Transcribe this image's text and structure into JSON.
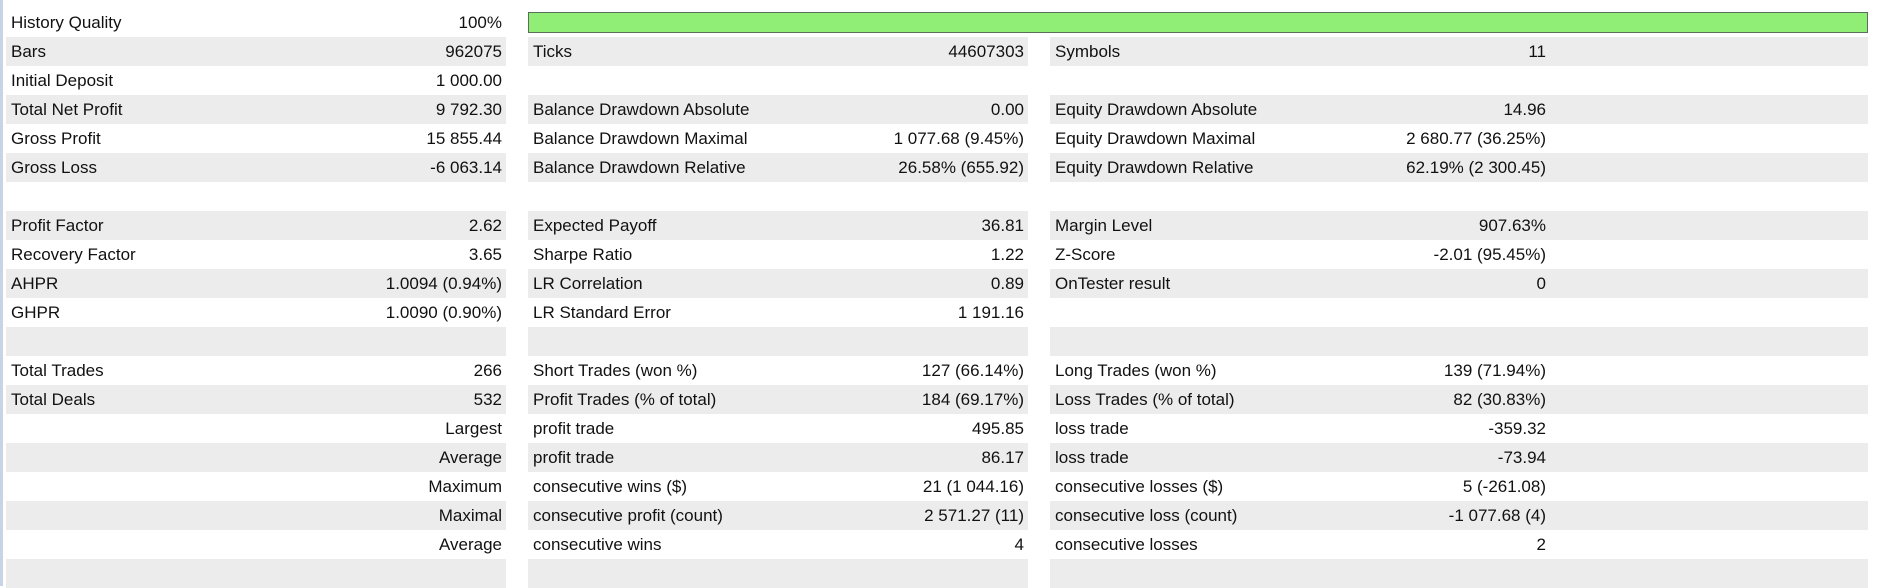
{
  "header": {
    "history_quality_label": "History Quality",
    "history_quality_value": "100%",
    "history_quality_fraction": 1.0,
    "bar_color": "#90ee76"
  },
  "rows": [
    {
      "c1": {
        "label": "Bars",
        "value": "962075"
      },
      "c2": {
        "label": "Ticks",
        "value": "44607303"
      },
      "c3": {
        "label": "Symbols",
        "value": "11"
      }
    },
    {
      "c1": {
        "label": "Initial Deposit",
        "value": "1 000.00"
      },
      "c2": {
        "label": "",
        "value": ""
      },
      "c3": {
        "label": "",
        "value": ""
      }
    },
    {
      "c1": {
        "label": "Total Net Profit",
        "value": "9 792.30"
      },
      "c2": {
        "label": "Balance Drawdown Absolute",
        "value": "0.00"
      },
      "c3": {
        "label": "Equity Drawdown Absolute",
        "value": "14.96"
      }
    },
    {
      "c1": {
        "label": "Gross Profit",
        "value": "15 855.44"
      },
      "c2": {
        "label": "Balance Drawdown Maximal",
        "value": "1 077.68 (9.45%)"
      },
      "c3": {
        "label": "Equity Drawdown Maximal",
        "value": "2 680.77 (36.25%)"
      }
    },
    {
      "c1": {
        "label": "Gross Loss",
        "value": "-6 063.14"
      },
      "c2": {
        "label": "Balance Drawdown Relative",
        "value": "26.58% (655.92)"
      },
      "c3": {
        "label": "Equity Drawdown Relative",
        "value": "62.19% (2 300.45)"
      }
    },
    {
      "c1": {
        "label": "",
        "value": ""
      },
      "c2": {
        "label": "",
        "value": ""
      },
      "c3": {
        "label": "",
        "value": ""
      }
    },
    {
      "c1": {
        "label": "Profit Factor",
        "value": "2.62"
      },
      "c2": {
        "label": "Expected Payoff",
        "value": "36.81"
      },
      "c3": {
        "label": "Margin Level",
        "value": "907.63%"
      }
    },
    {
      "c1": {
        "label": "Recovery Factor",
        "value": "3.65"
      },
      "c2": {
        "label": "Sharpe Ratio",
        "value": "1.22"
      },
      "c3": {
        "label": "Z-Score",
        "value": "-2.01 (95.45%)"
      }
    },
    {
      "c1": {
        "label": "AHPR",
        "value": "1.0094 (0.94%)"
      },
      "c2": {
        "label": "LR Correlation",
        "value": "0.89"
      },
      "c3": {
        "label": "OnTester result",
        "value": "0"
      }
    },
    {
      "c1": {
        "label": "GHPR",
        "value": "1.0090 (0.90%)"
      },
      "c2": {
        "label": "LR Standard Error",
        "value": "1 191.16"
      },
      "c3": {
        "label": "",
        "value": ""
      }
    },
    {
      "c1": {
        "label": "",
        "value": ""
      },
      "c2": {
        "label": "",
        "value": ""
      },
      "c3": {
        "label": "",
        "value": ""
      }
    },
    {
      "c1": {
        "label": "Total Trades",
        "value": "266"
      },
      "c2": {
        "label": "Short Trades (won %)",
        "value": "127 (66.14%)"
      },
      "c3": {
        "label": "Long Trades (won %)",
        "value": "139 (71.94%)"
      }
    },
    {
      "c1": {
        "label": "Total Deals",
        "value": "532"
      },
      "c2": {
        "label": "Profit Trades (% of total)",
        "value": "184 (69.17%)"
      },
      "c3": {
        "label": "Loss Trades (% of total)",
        "value": "82 (30.83%)"
      }
    },
    {
      "c1": {
        "label": "",
        "value": "Largest"
      },
      "c2": {
        "label": "profit trade",
        "value": "495.85"
      },
      "c3": {
        "label": "loss trade",
        "value": "-359.32"
      }
    },
    {
      "c1": {
        "label": "",
        "value": "Average"
      },
      "c2": {
        "label": "profit trade",
        "value": "86.17"
      },
      "c3": {
        "label": "loss trade",
        "value": "-73.94"
      }
    },
    {
      "c1": {
        "label": "",
        "value": "Maximum"
      },
      "c2": {
        "label": "consecutive wins ($)",
        "value": "21 (1 044.16)"
      },
      "c3": {
        "label": "consecutive losses ($)",
        "value": "5 (-261.08)"
      }
    },
    {
      "c1": {
        "label": "",
        "value": "Maximal"
      },
      "c2": {
        "label": "consecutive profit (count)",
        "value": "2 571.27 (11)"
      },
      "c3": {
        "label": "consecutive loss (count)",
        "value": "-1 077.68 (4)"
      }
    },
    {
      "c1": {
        "label": "",
        "value": "Average"
      },
      "c2": {
        "label": "consecutive wins",
        "value": "4"
      },
      "c3": {
        "label": "consecutive losses",
        "value": "2"
      }
    },
    {
      "c1": {
        "label": "",
        "value": ""
      },
      "c2": {
        "label": "",
        "value": ""
      },
      "c3": {
        "label": "",
        "value": ""
      }
    }
  ]
}
